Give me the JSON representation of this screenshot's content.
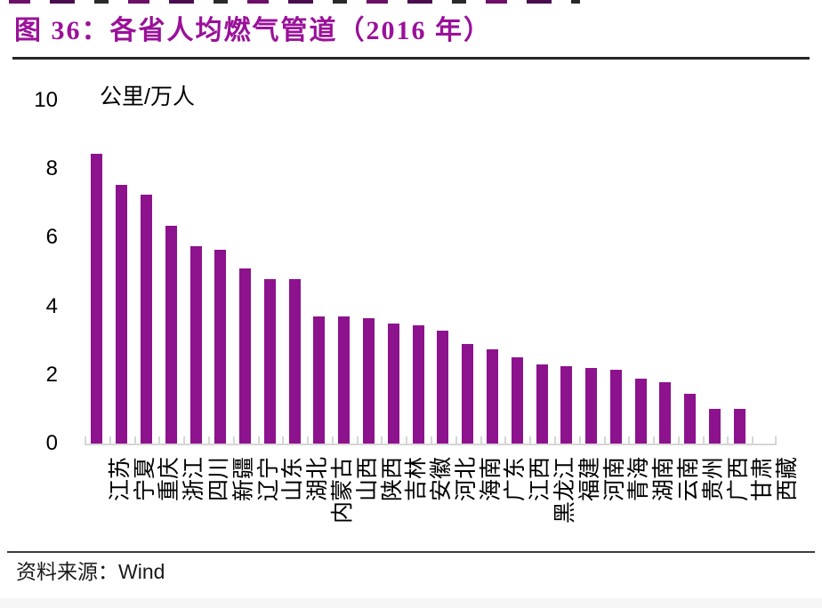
{
  "title": "图 36：各省人均燃气管道（2016 年）",
  "y_axis_unit": "公里/万人",
  "source": "资料来源：Wind",
  "colors": {
    "bar": "#8d128d",
    "title": "#9a119a",
    "axis": "#d6d6d6",
    "top_rule": "#262626",
    "bottom_rule": "#3d3d3d"
  },
  "chart_data": {
    "type": "bar",
    "title": "图 36：各省人均燃气管道（2016 年）",
    "xlabel": "",
    "ylabel": "公里/万人",
    "ylim": [
      0,
      10
    ],
    "y_ticks": [
      10,
      8,
      6,
      4,
      2,
      0
    ],
    "grid": false,
    "legend_position": "none",
    "bar_color": "#8d128d",
    "categories": [
      "江苏",
      "宁夏",
      "重庆",
      "浙江",
      "四川",
      "新疆",
      "辽宁",
      "山东",
      "湖北",
      "内蒙古",
      "山西",
      "陕西",
      "吉林",
      "安徽",
      "河北",
      "海南",
      "广东",
      "江西",
      "黑龙江",
      "福建",
      "河南",
      "青海",
      "湖南",
      "云南",
      "贵州",
      "广西",
      "甘肃",
      "西藏"
    ],
    "values": [
      8.45,
      7.55,
      7.25,
      6.35,
      5.75,
      5.65,
      5.1,
      4.8,
      4.8,
      3.7,
      3.7,
      3.65,
      3.5,
      3.45,
      3.3,
      2.9,
      2.75,
      2.5,
      2.3,
      2.25,
      2.2,
      2.15,
      1.9,
      1.8,
      1.45,
      1.0,
      1.0,
      0
    ]
  }
}
